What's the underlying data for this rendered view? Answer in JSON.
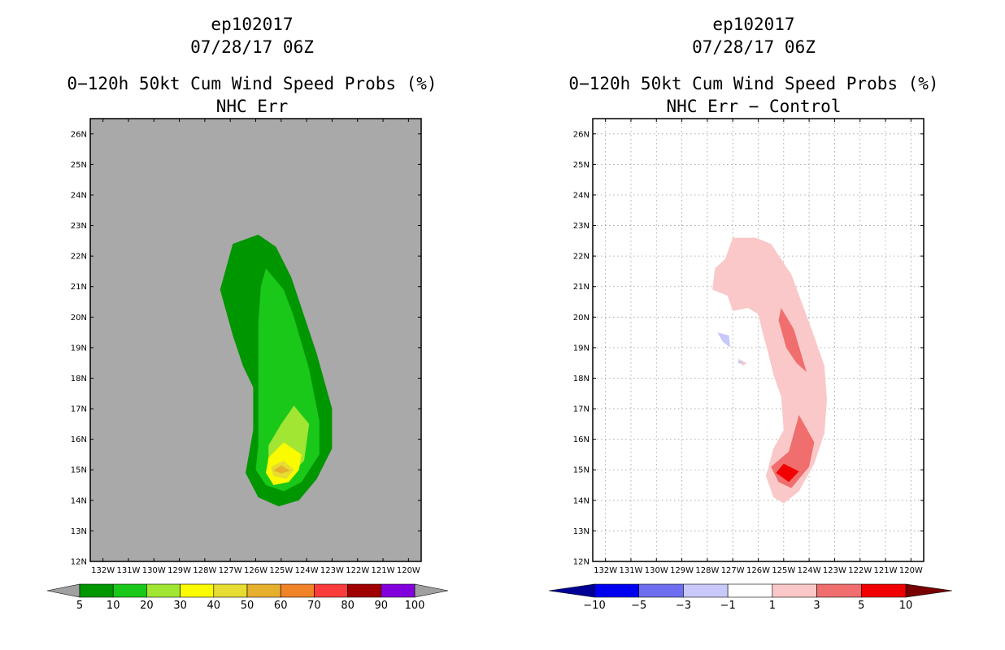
{
  "left": {
    "storm_id": "ep102017",
    "datetime": "07/28/17 06Z",
    "title": "0−120h 50kt Cum Wind Speed Probs (%)",
    "subtitle": "NHC Err",
    "colorbar": {
      "colors": [
        "#009600",
        "#19c819",
        "#a0e632",
        "#fafa00",
        "#e6dc32",
        "#e6af2d",
        "#f08228",
        "#fa3c3c",
        "#a00000",
        "#8200dc"
      ],
      "labels": [
        "5",
        "10",
        "20",
        "30",
        "40",
        "50",
        "60",
        "70",
        "80",
        "90",
        "100"
      ],
      "arrow_color": "#a0a0a0"
    }
  },
  "right": {
    "storm_id": "ep102017",
    "datetime": "07/28/17 06Z",
    "title": "0−120h 50kt Cum Wind Speed Probs (%)",
    "subtitle": "NHC Err − Control",
    "colorbar": {
      "colors": [
        "#0000f0",
        "#6e6ef0",
        "#c8c8fa",
        "#ffffff",
        "#fac8c8",
        "#f06e6e",
        "#f00000"
      ],
      "labels": [
        "−10",
        "−5",
        "−3",
        "−1",
        "1",
        "3",
        "5",
        "10"
      ],
      "low_arrow": "#000096",
      "high_arrow": "#780000"
    }
  },
  "chart_data": [
    {
      "type": "contour",
      "panel": "left",
      "title": "0−120h 50kt Cum Wind Speed Probs (%)",
      "subtitle": "NHC Err",
      "units": "%",
      "xlim": [
        -132.5,
        -119.5
      ],
      "ylim": [
        12,
        26.5
      ],
      "x_ticks": [
        -132,
        -131,
        -130,
        -129,
        -128,
        -127,
        -126,
        -125,
        -124,
        -123,
        -122,
        -121,
        -120
      ],
      "x_tick_labels": [
        "132W",
        "131W",
        "130W",
        "129W",
        "128W",
        "127W",
        "126W",
        "125W",
        "124W",
        "123W",
        "122W",
        "121W",
        "120W"
      ],
      "y_ticks": [
        12,
        13,
        14,
        15,
        16,
        17,
        18,
        19,
        20,
        21,
        22,
        23,
        24,
        25,
        26
      ],
      "y_tick_labels": [
        "12N",
        "13N",
        "14N",
        "15N",
        "16N",
        "17N",
        "18N",
        "19N",
        "20N",
        "21N",
        "22N",
        "23N",
        "24N",
        "25N",
        "26N"
      ],
      "background": "#a9a9a9",
      "levels": [
        {
          "min": 5,
          "color": "#009600",
          "lonlat": [
            [
              -125.9,
              22.7
            ],
            [
              -125.2,
              22.3
            ],
            [
              -124.6,
              21.3
            ],
            [
              -123.6,
              18.8
            ],
            [
              -123.0,
              17.0
            ],
            [
              -123.0,
              15.7
            ],
            [
              -123.6,
              14.7
            ],
            [
              -124.3,
              14.0
            ],
            [
              -125.1,
              13.8
            ],
            [
              -125.9,
              14.1
            ],
            [
              -126.4,
              14.9
            ],
            [
              -126.1,
              16.3
            ],
            [
              -126.1,
              17.7
            ],
            [
              -126.5,
              18.4
            ],
            [
              -126.9,
              19.4
            ],
            [
              -127.4,
              20.9
            ],
            [
              -126.9,
              22.4
            ]
          ]
        },
        {
          "min": 10,
          "color": "#19c819",
          "lonlat": [
            [
              -125.6,
              21.6
            ],
            [
              -124.9,
              20.9
            ],
            [
              -124.5,
              20.0
            ],
            [
              -123.9,
              18.3
            ],
            [
              -123.5,
              16.6
            ],
            [
              -123.5,
              15.5
            ],
            [
              -124.2,
              14.6
            ],
            [
              -124.9,
              14.3
            ],
            [
              -125.6,
              14.5
            ],
            [
              -126.0,
              15.0
            ],
            [
              -125.9,
              15.8
            ],
            [
              -125.9,
              16.8
            ],
            [
              -125.9,
              17.8
            ],
            [
              -125.9,
              18.8
            ],
            [
              -125.9,
              19.8
            ],
            [
              -125.8,
              21.0
            ]
          ]
        },
        {
          "min": 20,
          "color": "#a0e632",
          "lonlat": [
            [
              -124.5,
              17.1
            ],
            [
              -123.9,
              16.5
            ],
            [
              -124.1,
              15.3
            ],
            [
              -124.8,
              14.7
            ],
            [
              -125.5,
              15.0
            ],
            [
              -125.5,
              15.8
            ],
            [
              -125.0,
              16.5
            ]
          ]
        },
        {
          "min": 30,
          "color": "#fafa00",
          "lonlat": [
            [
              -124.9,
              15.9
            ],
            [
              -124.2,
              15.5
            ],
            [
              -124.3,
              15.0
            ],
            [
              -124.7,
              14.6
            ],
            [
              -125.3,
              14.5
            ],
            [
              -125.6,
              14.9
            ],
            [
              -125.5,
              15.4
            ]
          ]
        },
        {
          "min": 40,
          "color": "#e6dc32",
          "lonlat": [
            [
              -124.9,
              15.3
            ],
            [
              -124.5,
              15.0
            ],
            [
              -124.8,
              14.7
            ],
            [
              -125.3,
              14.8
            ],
            [
              -125.4,
              15.1
            ]
          ]
        },
        {
          "min": 50,
          "color": "#e6af2d",
          "lonlat": [
            [
              -125.0,
              15.15
            ],
            [
              -124.65,
              14.97
            ],
            [
              -125.0,
              14.88
            ],
            [
              -125.3,
              14.98
            ]
          ]
        }
      ]
    },
    {
      "type": "contour",
      "panel": "right",
      "title": "0−120h 50kt Cum Wind Speed Probs (%)",
      "subtitle": "NHC Err − Control",
      "units": "%",
      "xlim": [
        -132.5,
        -119.5
      ],
      "ylim": [
        12,
        26.5
      ],
      "x_ticks": [
        -132,
        -131,
        -130,
        -129,
        -128,
        -127,
        -126,
        -125,
        -124,
        -123,
        -122,
        -121,
        -120
      ],
      "x_tick_labels": [
        "132W",
        "131W",
        "130W",
        "129W",
        "128W",
        "127W",
        "126W",
        "125W",
        "124W",
        "123W",
        "122W",
        "121W",
        "120W"
      ],
      "y_ticks": [
        12,
        13,
        14,
        15,
        16,
        17,
        18,
        19,
        20,
        21,
        22,
        23,
        24,
        25,
        26
      ],
      "y_tick_labels": [
        "12N",
        "13N",
        "14N",
        "15N",
        "16N",
        "17N",
        "18N",
        "19N",
        "20N",
        "21N",
        "22N",
        "23N",
        "24N",
        "25N",
        "26N"
      ],
      "background": "#ffffff",
      "grid": true,
      "levels": [
        {
          "min": 1,
          "color": "#fac8c8",
          "lonlat": [
            [
              -127.0,
              22.6
            ],
            [
              -126.1,
              22.6
            ],
            [
              -125.5,
              22.4
            ],
            [
              -124.7,
              21.4
            ],
            [
              -124.3,
              20.5
            ],
            [
              -123.9,
              19.6
            ],
            [
              -123.4,
              18.4
            ],
            [
              -123.3,
              17.3
            ],
            [
              -123.4,
              16.2
            ],
            [
              -123.8,
              15.2
            ],
            [
              -124.4,
              14.3
            ],
            [
              -125.0,
              13.9
            ],
            [
              -125.4,
              14.1
            ],
            [
              -125.7,
              14.8
            ],
            [
              -125.4,
              15.7
            ],
            [
              -125.0,
              16.3
            ],
            [
              -125.1,
              17.4
            ],
            [
              -125.4,
              18.1
            ],
            [
              -125.6,
              18.8
            ],
            [
              -125.8,
              19.4
            ],
            [
              -126.0,
              20.1
            ],
            [
              -126.4,
              20.3
            ],
            [
              -127.0,
              20.2
            ],
            [
              -127.2,
              20.7
            ],
            [
              -127.8,
              20.9
            ],
            [
              -127.7,
              21.6
            ],
            [
              -127.3,
              21.9
            ]
          ]
        },
        {
          "min": 1,
          "color": "#fac8c8",
          "lonlat": [
            [
              -126.7,
              18.6
            ],
            [
              -126.45,
              18.5
            ],
            [
              -126.6,
              18.4
            ]
          ]
        },
        {
          "min": 3,
          "color": "#f06e6e",
          "lonlat": [
            [
              -125.1,
              20.3
            ],
            [
              -124.6,
              19.6
            ],
            [
              -124.1,
              18.2
            ],
            [
              -124.5,
              18.5
            ],
            [
              -124.9,
              19.0
            ],
            [
              -125.2,
              19.9
            ]
          ]
        },
        {
          "min": 3,
          "color": "#f06e6e",
          "lonlat": [
            [
              -124.4,
              16.8
            ],
            [
              -123.8,
              15.9
            ],
            [
              -124.0,
              15.1
            ],
            [
              -124.7,
              14.4
            ],
            [
              -125.2,
              14.6
            ],
            [
              -125.5,
              15.1
            ],
            [
              -124.8,
              15.6
            ]
          ]
        },
        {
          "min": 5,
          "color": "#f00000",
          "lonlat": [
            [
              -125.0,
              15.2
            ],
            [
              -124.4,
              14.95
            ],
            [
              -124.8,
              14.6
            ],
            [
              -125.3,
              14.9
            ]
          ]
        },
        {
          "max": -1,
          "color": "#c8c8fa",
          "lonlat": [
            [
              -127.6,
              19.5
            ],
            [
              -127.15,
              19.4
            ],
            [
              -127.1,
              19.0
            ],
            [
              -127.4,
              19.2
            ]
          ]
        },
        {
          "max": -1,
          "color": "#c8c8fa",
          "lonlat": [
            [
              -126.75,
              18.65
            ],
            [
              -126.6,
              18.45
            ],
            [
              -126.8,
              18.5
            ]
          ]
        }
      ]
    }
  ]
}
